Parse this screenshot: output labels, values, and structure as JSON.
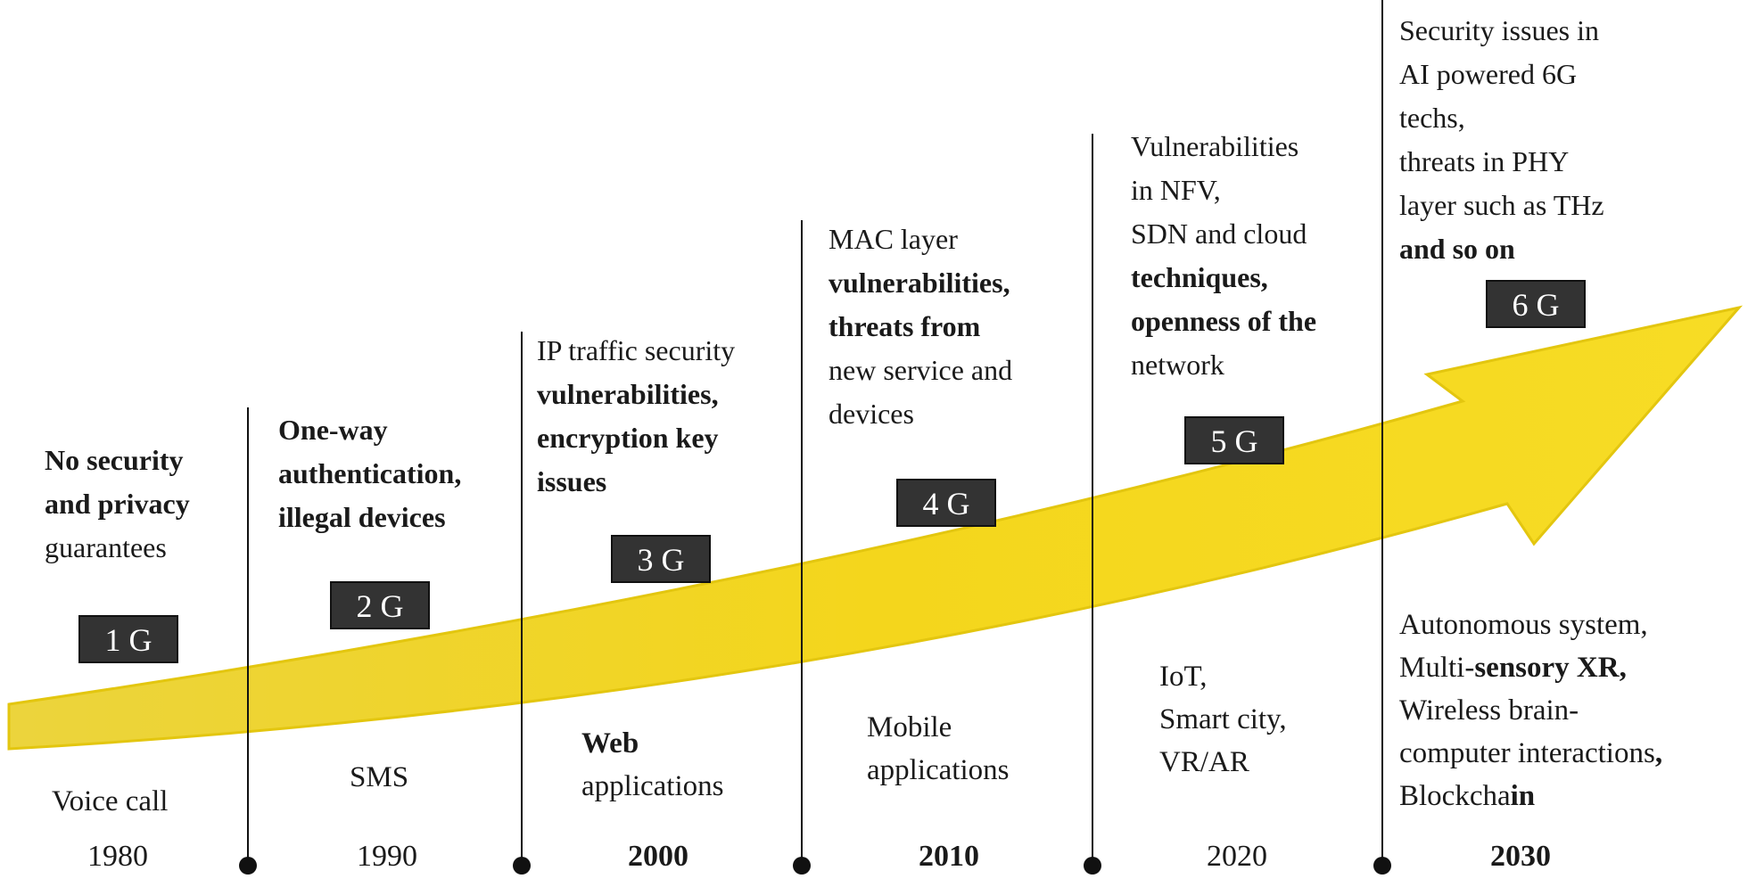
{
  "eras": [
    {
      "generation": "1 G",
      "year": "1980",
      "year_bold": false,
      "security_lines": [
        [
          {
            "t": "No security",
            "b": true
          }
        ],
        [
          {
            "t": "and privacy",
            "b": true
          }
        ],
        [
          {
            "t": "guarantees",
            "b": false
          }
        ]
      ],
      "app_lines": [
        [
          {
            "t": "Voice call",
            "b": false
          }
        ]
      ]
    },
    {
      "generation": "2 G",
      "year": "1990",
      "year_bold": false,
      "security_lines": [
        [
          {
            "t": "One-way",
            "b": true
          }
        ],
        [
          {
            "t": "authentication,",
            "b": true
          }
        ],
        [
          {
            "t": "illegal devices",
            "b": true
          }
        ]
      ],
      "app_lines": [
        [
          {
            "t": "SMS",
            "b": false
          }
        ]
      ]
    },
    {
      "generation": "3 G",
      "year": "2000",
      "year_bold": true,
      "security_lines": [
        [
          {
            "t": "IP traffic security",
            "b": false
          }
        ],
        [
          {
            "t": "vulnerabilities,",
            "b": true
          }
        ],
        [
          {
            "t": "encryption key",
            "b": true
          }
        ],
        [
          {
            "t": "issues",
            "b": true
          }
        ]
      ],
      "app_lines": [
        [
          {
            "t": "Web",
            "b": true
          }
        ],
        [
          {
            "t": "applications",
            "b": false
          }
        ]
      ]
    },
    {
      "generation": "4 G",
      "year": "2010",
      "year_bold": true,
      "security_lines": [
        [
          {
            "t": "MAC layer",
            "b": false
          }
        ],
        [
          {
            "t": "vulnerabilities,",
            "b": true
          }
        ],
        [
          {
            "t": "threats from",
            "b": true
          }
        ],
        [
          {
            "t": "new service and",
            "b": false
          }
        ],
        [
          {
            "t": "devices",
            "b": false
          }
        ]
      ],
      "app_lines": [
        [
          {
            "t": "Mobile",
            "b": false
          }
        ],
        [
          {
            "t": "applications",
            "b": false
          }
        ]
      ]
    },
    {
      "generation": "5 G",
      "year": "2020",
      "year_bold": false,
      "security_lines": [
        [
          {
            "t": "Vulnerabilities",
            "b": false
          }
        ],
        [
          {
            "t": "in NFV,",
            "b": false
          }
        ],
        [
          {
            "t": "SDN and cloud",
            "b": false
          }
        ],
        [
          {
            "t": "techniques,",
            "b": true
          }
        ],
        [
          {
            "t": "openness of the",
            "b": true
          }
        ],
        [
          {
            "t": "network",
            "b": false
          }
        ]
      ],
      "app_lines": [
        [
          {
            "t": "IoT,",
            "b": false
          }
        ],
        [
          {
            "t": "Smart city,",
            "b": false
          }
        ],
        [
          {
            "t": "VR/AR",
            "b": false
          }
        ]
      ]
    },
    {
      "generation": "6 G",
      "year": "2030",
      "year_bold": true,
      "security_lines": [
        [
          {
            "t": "Security issues in",
            "b": false
          }
        ],
        [
          {
            "t": "AI powered 6G",
            "b": false
          }
        ],
        [
          {
            "t": "techs,",
            "b": false
          }
        ],
        [
          {
            "t": "threats in PHY",
            "b": false
          }
        ],
        [
          {
            "t": "layer such as THz",
            "b": false
          }
        ],
        [
          {
            "t": "and so on",
            "b": true
          }
        ]
      ],
      "app_lines": [
        [
          {
            "t": "Autonomous system,",
            "b": false
          }
        ],
        [
          {
            "t": "Multi-",
            "b": false
          },
          {
            "t": "sensory XR,",
            "b": true
          }
        ],
        [
          {
            "t": "Wireless brain-",
            "b": false
          }
        ],
        [
          {
            "t": "computer interactions",
            "b": false
          },
          {
            "t": ",",
            "b": true
          }
        ],
        [
          {
            "t": "Blockcha",
            "b": false
          },
          {
            "t": "in",
            "b": true
          }
        ]
      ]
    }
  ],
  "colors": {
    "arrow": "#f2d31b",
    "arrow_edge": "#d9b800",
    "badge_bg": "#333333",
    "badge_text": "#ffffff",
    "line": "#111111"
  }
}
